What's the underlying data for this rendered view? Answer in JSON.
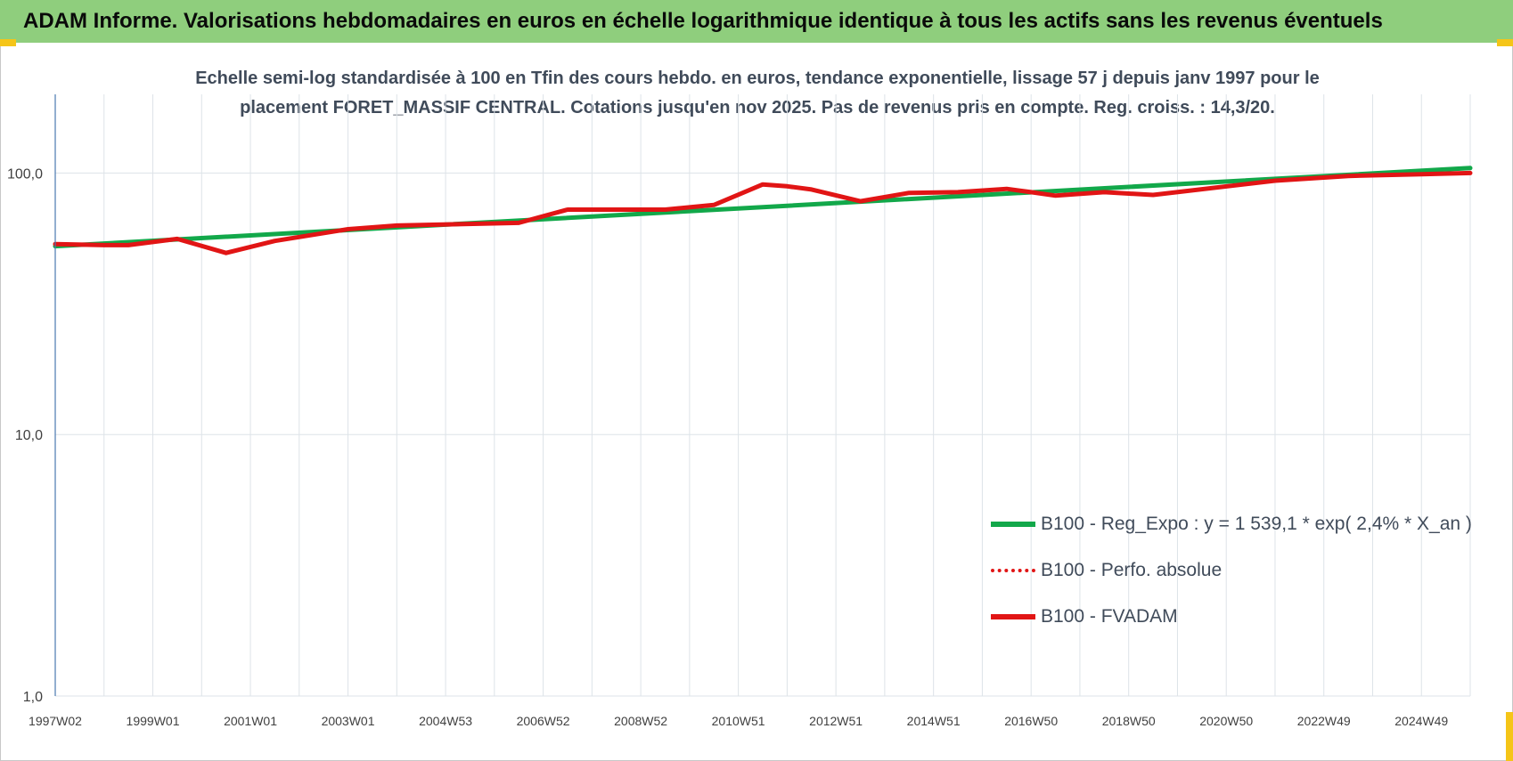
{
  "header": {
    "banner_title": "ADAM Informe. Valorisations hebdomadaires en euros en échelle logarithmique identique à tous les actifs sans les revenus éventuels"
  },
  "colors": {
    "banner_bg": "#8fce7d",
    "trend_green": "#12a84a",
    "series_red": "#e11515",
    "text_slate": "#404b5a",
    "corner_gold": "#f5c518"
  },
  "chart_data": {
    "type": "line",
    "title": "Echelle semi-log standardisée à 100 en Tfin des cours hebdo. en euros, tendance exponentielle, lissage 57 j depuis janv 1997 pour le placement FORET_MASSIF CENTRAL. Cotations jusqu'en nov 2025. Pas de revenus pris en compte. Reg. croiss. : 14,3/20.",
    "y_scale": "log",
    "ylim": [
      1,
      200
    ],
    "xlim": [
      1997.0,
      2026.0
    ],
    "y_ticks": [
      {
        "value": 1,
        "label": "1,0"
      },
      {
        "value": 10,
        "label": "10,0"
      },
      {
        "value": 100,
        "label": "100,0"
      }
    ],
    "x_ticks": [
      {
        "value": 1997.0,
        "label": "1997W02"
      },
      {
        "value": 1999.0,
        "label": "1999W01"
      },
      {
        "value": 2001.0,
        "label": "2001W01"
      },
      {
        "value": 2003.0,
        "label": "2003W01"
      },
      {
        "value": 2005.0,
        "label": "2004W53"
      },
      {
        "value": 2007.0,
        "label": "2006W52"
      },
      {
        "value": 2009.0,
        "label": "2008W52"
      },
      {
        "value": 2011.0,
        "label": "2010W51"
      },
      {
        "value": 2013.0,
        "label": "2012W51"
      },
      {
        "value": 2015.0,
        "label": "2014W51"
      },
      {
        "value": 2017.0,
        "label": "2016W50"
      },
      {
        "value": 2019.0,
        "label": "2018W50"
      },
      {
        "value": 2021.0,
        "label": "2020W50"
      },
      {
        "value": 2023.0,
        "label": "2022W49"
      },
      {
        "value": 2025.0,
        "label": "2024W49"
      }
    ],
    "grid": {
      "vertical": true,
      "horizontal": true
    },
    "legend_position": "bottom-right",
    "series": [
      {
        "name": "B100 - Reg_Expo : y = 1 539,1 * exp( 2,4% *  X_an )",
        "style": "solid",
        "color": "#12a84a",
        "x": [
          1997.0,
          2026.0
        ],
        "y": [
          52.5,
          104.5
        ]
      },
      {
        "name": "B100 - Perfo. absolue",
        "style": "dotted",
        "color": "#e11515",
        "x": [
          1997.0,
          1998.0,
          1998.5,
          1999.5,
          2000.5,
          2001.5,
          2003.0,
          2004.0,
          2006.5,
          2007.5,
          2009.5,
          2010.5,
          2011.5,
          2012.0,
          2012.5,
          2013.5,
          2014.5,
          2015.5,
          2016.5,
          2017.0,
          2017.5,
          2018.5,
          2019.5,
          2022.0,
          2023.5,
          2025.0,
          2026.0
        ],
        "y": [
          53.5,
          53.0,
          53.0,
          56.0,
          49.5,
          55.0,
          61.0,
          63.0,
          64.5,
          72.5,
          72.5,
          75.5,
          90.5,
          89.0,
          86.5,
          78.0,
          84.0,
          84.5,
          87.0,
          84.5,
          82.0,
          84.5,
          82.5,
          93.5,
          97.5,
          99.0,
          100.0
        ]
      },
      {
        "name": "B100 - FVADAM",
        "style": "solid",
        "color": "#e11515",
        "x": [
          1997.0,
          1998.0,
          1998.5,
          1999.5,
          2000.5,
          2001.5,
          2003.0,
          2004.0,
          2006.5,
          2007.5,
          2009.5,
          2010.5,
          2011.5,
          2012.0,
          2012.5,
          2013.5,
          2014.5,
          2015.5,
          2016.5,
          2017.0,
          2017.5,
          2018.5,
          2019.5,
          2022.0,
          2023.5,
          2025.0,
          2026.0
        ],
        "y": [
          53.5,
          53.0,
          53.0,
          56.0,
          49.5,
          55.0,
          61.0,
          63.0,
          64.5,
          72.5,
          72.5,
          75.5,
          90.5,
          89.0,
          86.5,
          78.0,
          84.0,
          84.5,
          87.0,
          84.5,
          82.0,
          84.5,
          82.5,
          93.5,
          97.5,
          99.0,
          100.0
        ]
      }
    ]
  }
}
